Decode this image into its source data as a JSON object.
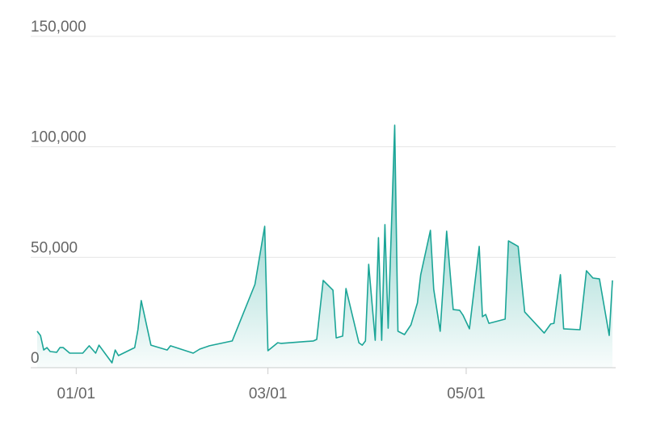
{
  "chart_data": {
    "type": "area",
    "color": "#1ba597",
    "x": [
      "12/20",
      "12/21",
      "12/22",
      "12/23",
      "12/24",
      "12/26",
      "12/27",
      "12/28",
      "12/30",
      "01/03",
      "01/05",
      "01/07",
      "01/08",
      "01/12",
      "01/13",
      "01/14",
      "01/19",
      "01/20",
      "01/21",
      "01/24",
      "01/29",
      "01/30",
      "02/06",
      "02/08",
      "02/11",
      "02/18",
      "02/25",
      "02/28",
      "03/01",
      "03/04",
      "03/05",
      "03/15",
      "03/16",
      "03/18",
      "03/21",
      "03/22",
      "03/24",
      "03/25",
      "03/29",
      "03/30",
      "03/31",
      "04/01",
      "04/03",
      "04/04",
      "04/05",
      "04/06",
      "04/07",
      "04/09",
      "04/10",
      "04/12",
      "04/14",
      "04/16",
      "04/17",
      "04/20",
      "04/21",
      "04/23",
      "04/25",
      "04/27",
      "04/29",
      "04/30",
      "05/02",
      "05/05",
      "05/06",
      "05/07",
      "05/08",
      "05/13",
      "05/14",
      "05/17",
      "05/19",
      "05/25",
      "05/27",
      "05/28",
      "05/30",
      "05/31",
      "06/05",
      "06/07",
      "06/09",
      "06/11",
      "06/14",
      "06/15"
    ],
    "values": [
      16500,
      14600,
      8000,
      9100,
      7300,
      7000,
      9100,
      9100,
      6600,
      6600,
      9900,
      6600,
      10200,
      2200,
      8000,
      5500,
      9100,
      17200,
      30400,
      10200,
      8000,
      9900,
      6600,
      8400,
      9900,
      12100,
      37700,
      64000,
      7700,
      11300,
      11000,
      12100,
      12800,
      39500,
      35100,
      13500,
      14300,
      35800,
      11300,
      10200,
      12100,
      46800,
      12400,
      58900,
      12400,
      64800,
      17900,
      109800,
      16500,
      15000,
      19400,
      29300,
      42100,
      62200,
      35500,
      16500,
      61800,
      26300,
      26000,
      23800,
      17600,
      54900,
      23100,
      24100,
      20100,
      22000,
      57400,
      54900,
      25200,
      15700,
      19800,
      20100,
      42100,
      17600,
      17200,
      43900,
      40600,
      40200,
      14600,
      39500
    ],
    "xlim": [
      "12/18",
      "06/16"
    ],
    "xticks": [
      "01/01",
      "03/01",
      "05/01"
    ],
    "ylim": [
      0,
      150000
    ],
    "yticks": [
      0,
      {
        "value": 50000,
        "label": "50,000"
      },
      {
        "value": 100000,
        "label": "100,000"
      },
      {
        "value": 150000,
        "label": "150,000"
      }
    ],
    "grid": true
  }
}
